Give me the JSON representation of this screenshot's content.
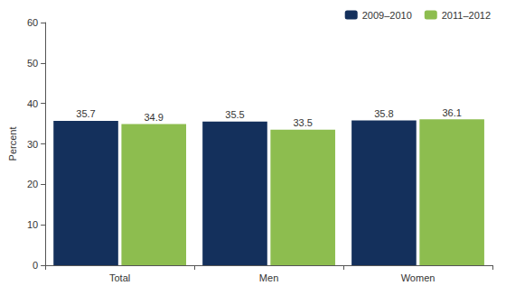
{
  "chart_data": {
    "type": "bar",
    "categories": [
      "Total",
      "Men",
      "Women"
    ],
    "series": [
      {
        "name": "2009–2010",
        "color": "#14305c",
        "values": [
          35.7,
          35.5,
          35.8
        ]
      },
      {
        "name": "2011–2012",
        "color": "#8dbd4f",
        "values": [
          34.9,
          33.5,
          36.1
        ]
      }
    ],
    "y_label": "Percent",
    "ylim": [
      0,
      60
    ],
    "yticks": [
      0,
      10,
      20,
      30,
      40,
      50,
      60
    ],
    "grid": false,
    "legend": "top-right",
    "data_labels": true
  }
}
